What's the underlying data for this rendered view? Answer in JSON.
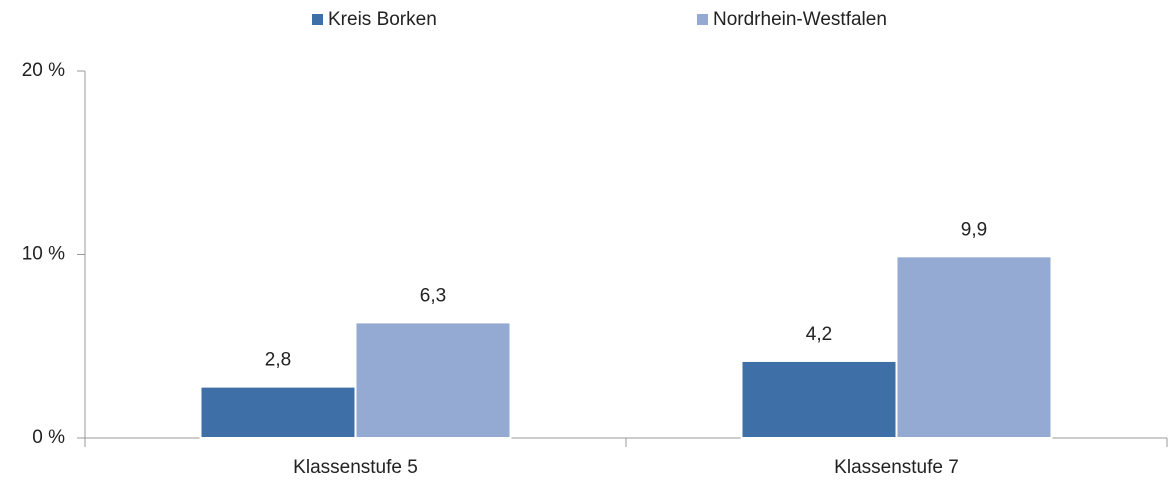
{
  "chart_data": {
    "type": "bar",
    "categories": [
      "Klassenstufe 5",
      "Klassenstufe 7"
    ],
    "series": [
      {
        "name": "Kreis Borken",
        "color": "#3e6fa6",
        "values": [
          2.8,
          4.2
        ],
        "value_labels": [
          "2,8",
          "4,2"
        ]
      },
      {
        "name": "Nordrhein-Westfalen",
        "color": "#94aad2",
        "values": [
          6.3,
          9.9
        ],
        "value_labels": [
          "6,3",
          "9,9"
        ]
      }
    ],
    "ylim": [
      0,
      20
    ],
    "yticks": [
      {
        "value": 0,
        "label": "0 %"
      },
      {
        "value": 10,
        "label": "10 %"
      },
      {
        "value": 20,
        "label": "20 %"
      }
    ],
    "legend": "top"
  }
}
